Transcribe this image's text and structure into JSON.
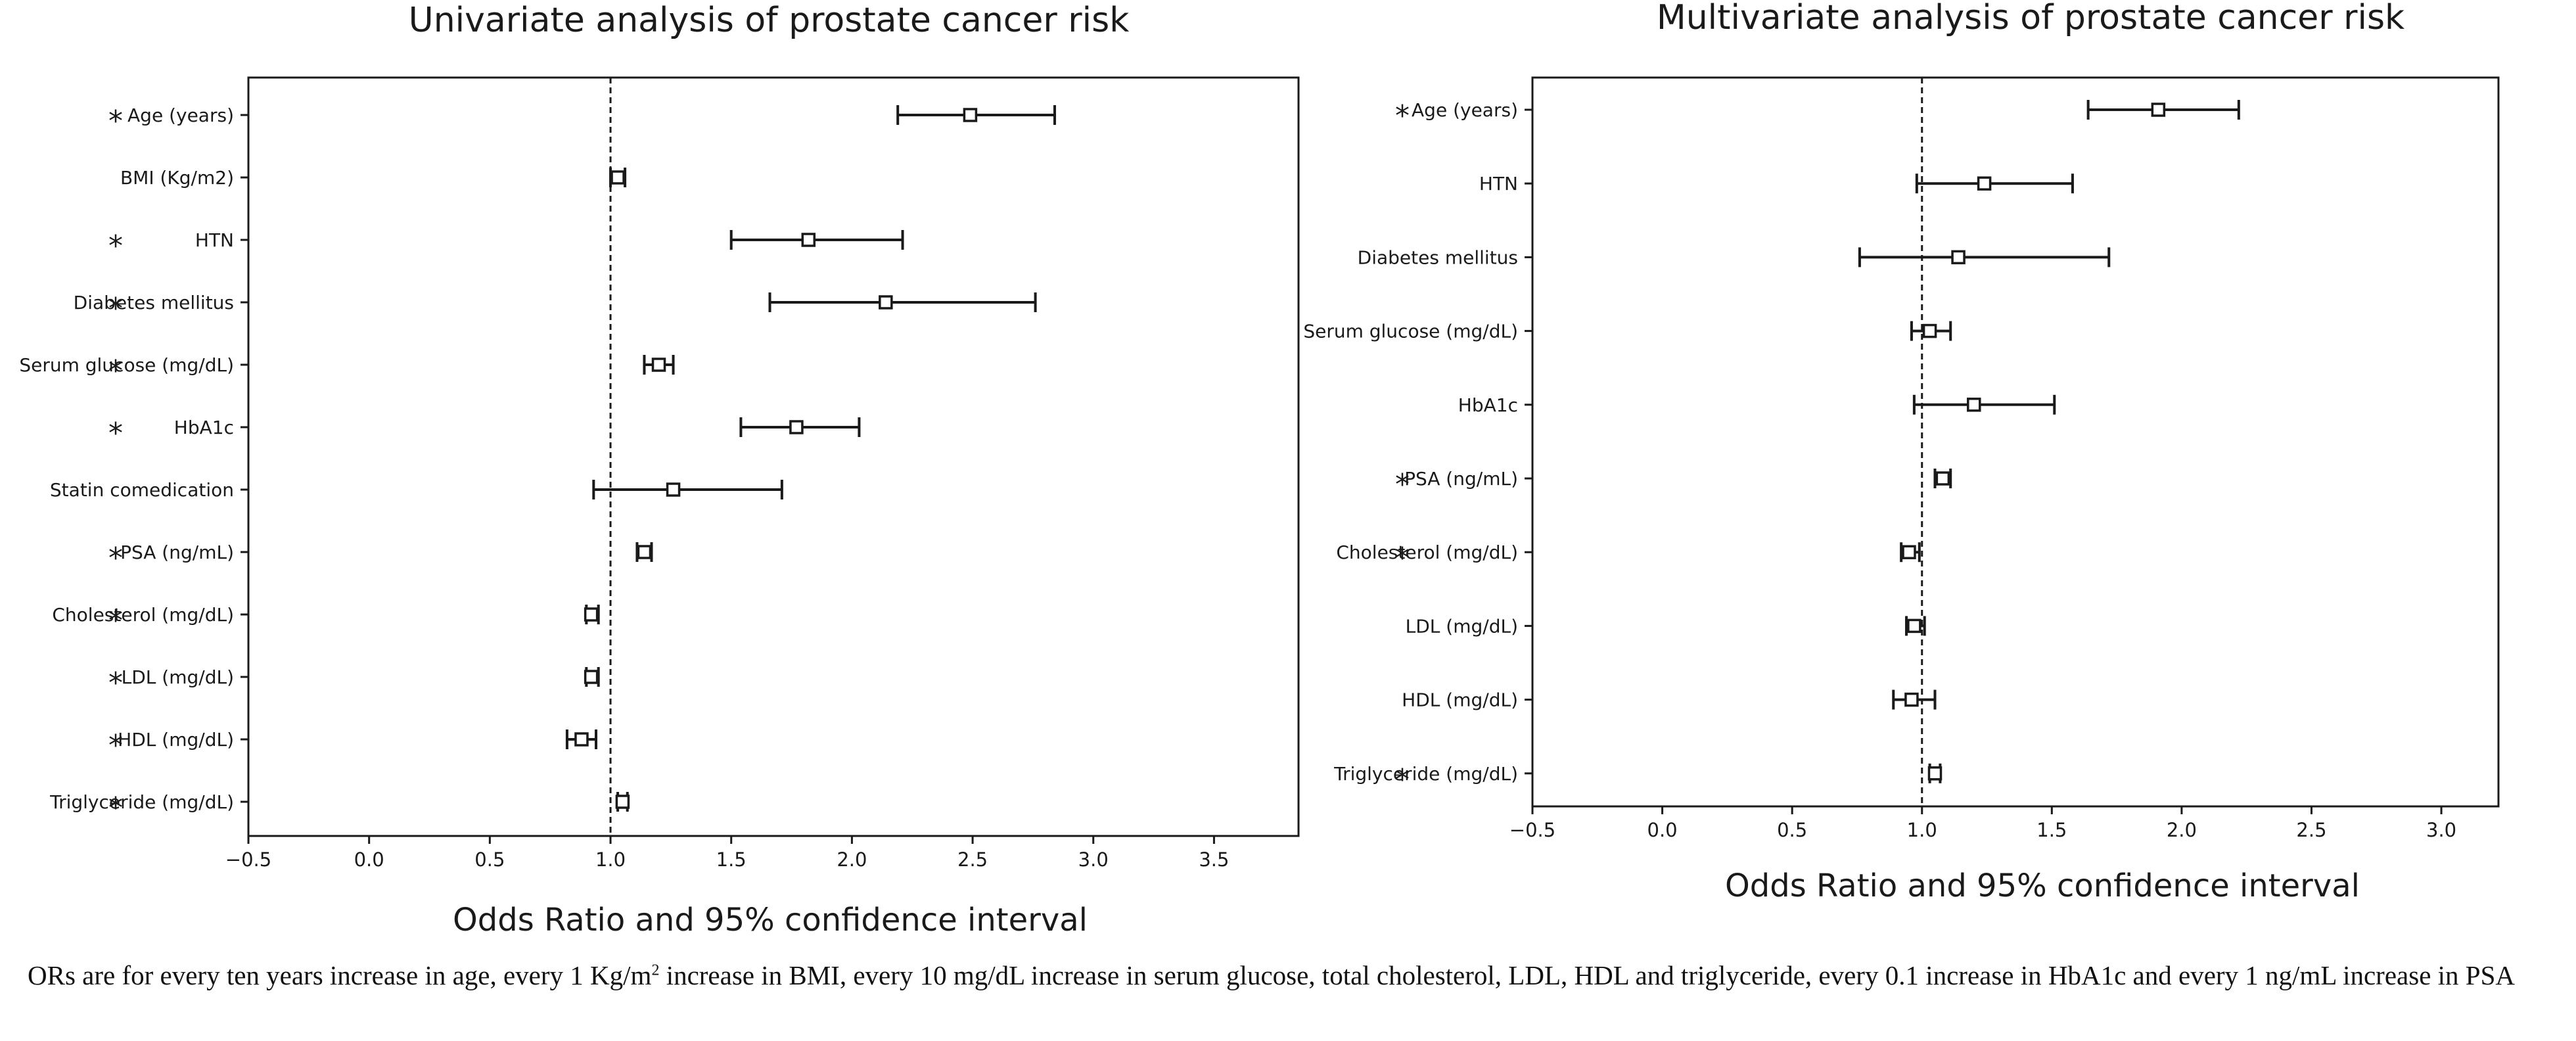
{
  "chart_data": [
    {
      "type": "forest",
      "title": "Univariate analysis of prostate cancer risk",
      "xlabel": "Odds Ratio and 95% confidence interval",
      "ylabel": "",
      "xlim": [
        -0.5,
        3.85
      ],
      "xticks": [
        "−0.5",
        "0.0",
        "0.5",
        "1.0",
        "1.5",
        "2.0",
        "2.5",
        "3.0",
        "3.5"
      ],
      "xtick_values": [
        -0.5,
        0.0,
        0.5,
        1.0,
        1.5,
        2.0,
        2.5,
        3.0,
        3.5
      ],
      "reference_line": 1.0,
      "significance_marker": "*",
      "rows": [
        {
          "label": "Age (years)",
          "or": 2.49,
          "lower": 2.19,
          "upper": 2.84,
          "significant": true
        },
        {
          "label": "BMI (Kg/m2)",
          "or": 1.03,
          "lower": 1.0,
          "upper": 1.06,
          "significant": false
        },
        {
          "label": "HTN",
          "or": 1.82,
          "lower": 1.5,
          "upper": 2.21,
          "significant": true
        },
        {
          "label": "Diabetes mellitus",
          "or": 2.14,
          "lower": 1.66,
          "upper": 2.76,
          "significant": true
        },
        {
          "label": "Serum glucose (mg/dL)",
          "or": 1.2,
          "lower": 1.14,
          "upper": 1.26,
          "significant": true
        },
        {
          "label": "HbA1c",
          "or": 1.77,
          "lower": 1.54,
          "upper": 2.03,
          "significant": true
        },
        {
          "label": "Statin comedication",
          "or": 1.26,
          "lower": 0.93,
          "upper": 1.71,
          "significant": false
        },
        {
          "label": "PSA (ng/mL)",
          "or": 1.14,
          "lower": 1.11,
          "upper": 1.17,
          "significant": true
        },
        {
          "label": "Cholesterol (mg/dL)",
          "or": 0.92,
          "lower": 0.9,
          "upper": 0.95,
          "significant": true
        },
        {
          "label": "LDL (mg/dL)",
          "or": 0.92,
          "lower": 0.9,
          "upper": 0.95,
          "significant": true
        },
        {
          "label": "HDL (mg/dL)",
          "or": 0.88,
          "lower": 0.82,
          "upper": 0.94,
          "significant": true
        },
        {
          "label": "Triglyceride (mg/dL)",
          "or": 1.05,
          "lower": 1.03,
          "upper": 1.07,
          "significant": true
        }
      ]
    },
    {
      "type": "forest",
      "title": "Multivariate analysis of prostate cancer risk",
      "xlabel": "Odds Ratio and 95% confidence interval",
      "ylabel": "",
      "xlim": [
        -0.5,
        3.22
      ],
      "xticks": [
        "−0.5",
        "0.0",
        "0.5",
        "1.0",
        "1.5",
        "2.0",
        "2.5",
        "3.0"
      ],
      "xtick_values": [
        -0.5,
        0.0,
        0.5,
        1.0,
        1.5,
        2.0,
        2.5,
        3.0
      ],
      "reference_line": 1.0,
      "significance_marker": "*",
      "rows": [
        {
          "label": "Age (years)",
          "or": 1.91,
          "lower": 1.64,
          "upper": 2.22,
          "significant": true
        },
        {
          "label": "HTN",
          "or": 1.24,
          "lower": 0.98,
          "upper": 1.58,
          "significant": false
        },
        {
          "label": "Diabetes mellitus",
          "or": 1.14,
          "lower": 0.76,
          "upper": 1.72,
          "significant": false
        },
        {
          "label": "Serum glucose (mg/dL)",
          "or": 1.03,
          "lower": 0.96,
          "upper": 1.11,
          "significant": false
        },
        {
          "label": "HbA1c",
          "or": 1.2,
          "lower": 0.97,
          "upper": 1.51,
          "significant": false
        },
        {
          "label": "PSA (ng/mL)",
          "or": 1.08,
          "lower": 1.05,
          "upper": 1.11,
          "significant": true
        },
        {
          "label": "Cholesterol (mg/dL)",
          "or": 0.95,
          "lower": 0.92,
          "upper": 0.99,
          "significant": true
        },
        {
          "label": "LDL (mg/dL)",
          "or": 0.97,
          "lower": 0.94,
          "upper": 1.01,
          "significant": false
        },
        {
          "label": "HDL (mg/dL)",
          "or": 0.96,
          "lower": 0.89,
          "upper": 1.05,
          "significant": false
        },
        {
          "label": "Triglyceride (mg/dL)",
          "or": 1.05,
          "lower": 1.03,
          "upper": 1.07,
          "significant": true
        }
      ]
    }
  ],
  "caption": {
    "part1": "ORs are for every ten years increase in age, every 1 Kg/m",
    "superscript": "2",
    "part2": " increase in BMI, every 10 mg/dL increase in serum glucose, total cholesterol, LDL, HDL and triglyceride, every 0.1 increase in HbA1c and every 1 ng/mL increase in PSA"
  },
  "colors": {
    "line": "#1a1a1a",
    "marker_fill": "#ffffff",
    "axis": "#1a1a1a"
  }
}
